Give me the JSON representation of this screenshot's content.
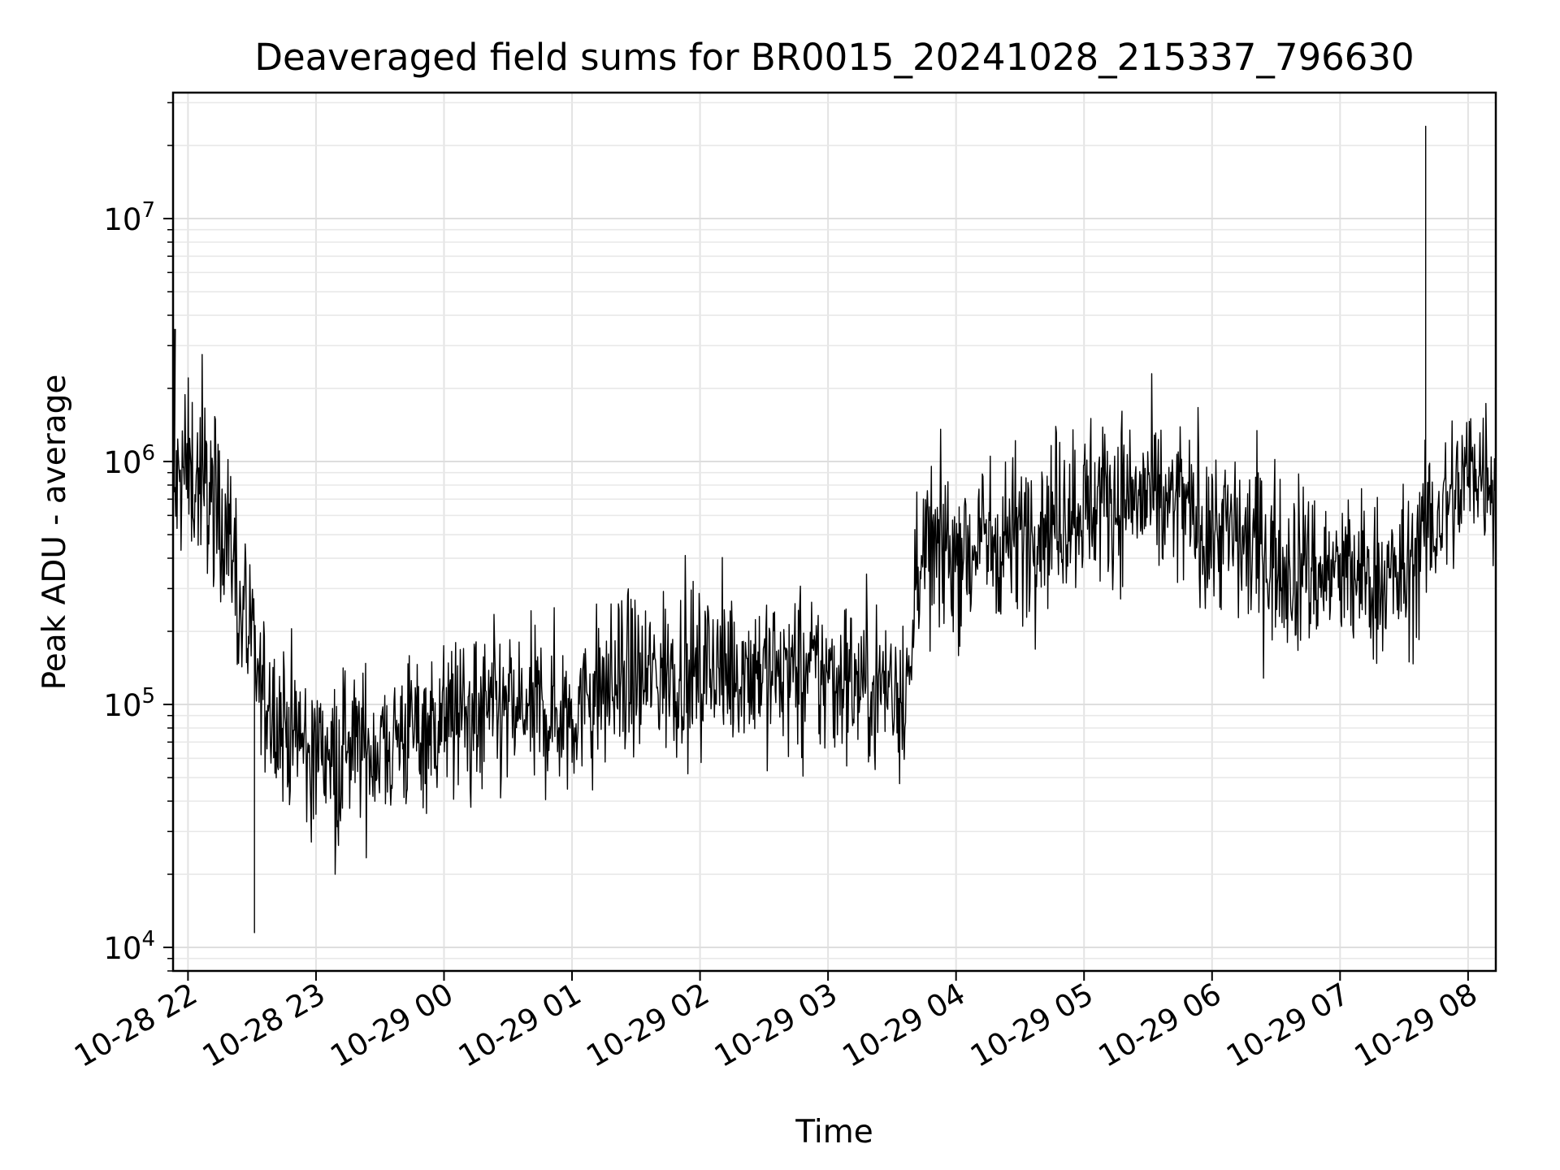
{
  "chart_data": {
    "type": "line",
    "title": "Deaveraged field sums for BR0015_20241028_215337_796630",
    "xlabel": "Time",
    "ylabel": "Peak ADU - average",
    "yscale": "log",
    "ylim": [
      8000,
      33000000
    ],
    "xlim": [
      "2024-10-28 21:53",
      "2024-10-29 08:13"
    ],
    "grid": true,
    "line_color": "#000000",
    "x_ticks": [
      "10-28 22",
      "10-28 23",
      "10-29 00",
      "10-29 01",
      "10-29 02",
      "10-29 03",
      "10-29 04",
      "10-29 05",
      "10-29 06",
      "10-29 07",
      "10-29 08"
    ],
    "y_ticks": [
      {
        "value": 10000,
        "base": "10",
        "exp": "4"
      },
      {
        "value": 100000,
        "base": "10",
        "exp": "5"
      },
      {
        "value": 1000000,
        "base": "10",
        "exp": "6"
      },
      {
        "value": 10000000,
        "base": "10",
        "exp": "7"
      }
    ],
    "series": [
      {
        "x": [
          "2024-10-28 21:53",
          "2024-10-28 21:56",
          "2024-10-28 22:00",
          "2024-10-28 22:05",
          "2024-10-28 22:10",
          "2024-10-28 22:15",
          "2024-10-28 22:20",
          "2024-10-28 22:25",
          "2024-10-28 22:30",
          "2024-10-28 22:35",
          "2024-10-28 22:40",
          "2024-10-28 22:45",
          "2024-10-28 22:50",
          "2024-10-28 22:55",
          "2024-10-28 23:00",
          "2024-10-28 23:10",
          "2024-10-28 23:20",
          "2024-10-28 23:30",
          "2024-10-28 23:40",
          "2024-10-28 23:50",
          "2024-10-29 00:00",
          "2024-10-29 00:15",
          "2024-10-29 00:30",
          "2024-10-29 00:45",
          "2024-10-29 01:00",
          "2024-10-29 01:15",
          "2024-10-29 01:30",
          "2024-10-29 01:45",
          "2024-10-29 02:00",
          "2024-10-29 02:15",
          "2024-10-29 02:30",
          "2024-10-29 02:45",
          "2024-10-29 03:00",
          "2024-10-29 03:15",
          "2024-10-29 03:30",
          "2024-10-29 03:39",
          "2024-10-29 03:41",
          "2024-10-29 03:50",
          "2024-10-29 04:00",
          "2024-10-29 04:15",
          "2024-10-29 04:30",
          "2024-10-29 04:45",
          "2024-10-29 05:00",
          "2024-10-29 05:15",
          "2024-10-29 05:30",
          "2024-10-29 05:45",
          "2024-10-29 06:00",
          "2024-10-29 06:15",
          "2024-10-29 06:30",
          "2024-10-29 06:45",
          "2024-10-29 07:00",
          "2024-10-29 07:15",
          "2024-10-29 07:30",
          "2024-10-29 07:40",
          "2024-10-29 07:50",
          "2024-10-29 08:00",
          "2024-10-29 08:05",
          "2024-10-29 08:13"
        ],
        "y": [
          700000,
          800000,
          900000,
          850000,
          750000,
          650000,
          450000,
          250000,
          150000,
          110000,
          90000,
          85000,
          75000,
          70000,
          65000,
          62000,
          64000,
          68000,
          75000,
          82000,
          87000,
          88000,
          90000,
          92000,
          95000,
          115000,
          125000,
          135000,
          140000,
          145000,
          142000,
          135000,
          130000,
          125000,
          120000,
          120000,
          420000,
          430000,
          430000,
          470000,
          520000,
          600000,
          680000,
          720000,
          700000,
          640000,
          560000,
          470000,
          400000,
          360000,
          340000,
          330000,
          330000,
          500000,
          650000,
          900000,
          950000,
          900000
        ]
      }
    ]
  }
}
